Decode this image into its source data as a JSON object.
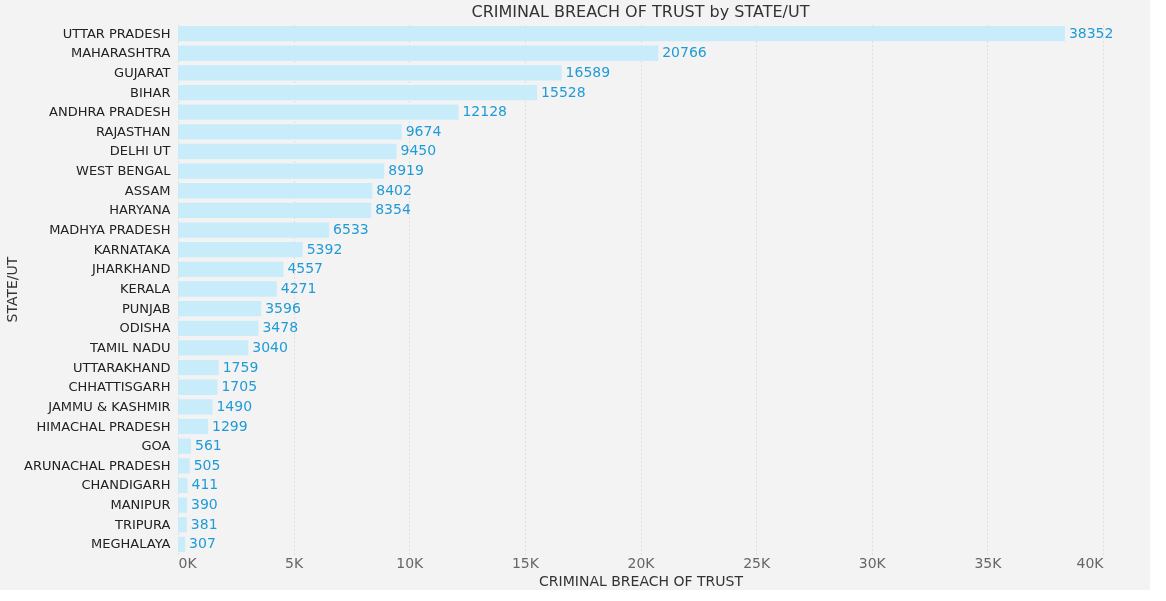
{
  "chart_data": {
    "type": "bar",
    "orientation": "horizontal",
    "title": "CRIMINAL BREACH OF TRUST by STATE/UT",
    "xlabel": "CRIMINAL BREACH OF TRUST",
    "ylabel": "STATE/UT",
    "categories": [
      "UTTAR PRADESH",
      "MAHARASHTRA",
      "GUJARAT",
      "BIHAR",
      "ANDHRA PRADESH",
      "RAJASTHAN",
      "DELHI UT",
      "WEST BENGAL",
      "ASSAM",
      "HARYANA",
      "MADHYA PRADESH",
      "KARNATAKA",
      "JHARKHAND",
      "KERALA",
      "PUNJAB",
      "ODISHA",
      "TAMIL NADU",
      "UTTARAKHAND",
      "CHHATTISGARH",
      "JAMMU & KASHMIR",
      "HIMACHAL PRADESH",
      "GOA",
      "ARUNACHAL PRADESH",
      "CHANDIGARH",
      "MANIPUR",
      "TRIPURA",
      "MEGHALAYA"
    ],
    "values": [
      38352,
      20766,
      16589,
      15528,
      12128,
      9674,
      9450,
      8919,
      8402,
      8354,
      6533,
      5392,
      4557,
      4271,
      3596,
      3478,
      3040,
      1759,
      1705,
      1490,
      1299,
      561,
      505,
      411,
      390,
      381,
      307
    ],
    "color": "#c9ecfb",
    "data_labels": true,
    "grid": "x",
    "xlim": [
      0,
      40000
    ],
    "xticks": [
      {
        "value": 0,
        "label": "0K"
      },
      {
        "value": 5000,
        "label": "5K"
      },
      {
        "value": 10000,
        "label": "10K"
      },
      {
        "value": 15000,
        "label": "15K"
      },
      {
        "value": 20000,
        "label": "20K"
      },
      {
        "value": 25000,
        "label": "25K"
      },
      {
        "value": 30000,
        "label": "30K"
      },
      {
        "value": 35000,
        "label": "35K"
      },
      {
        "value": 40000,
        "label": "40K"
      }
    ]
  }
}
